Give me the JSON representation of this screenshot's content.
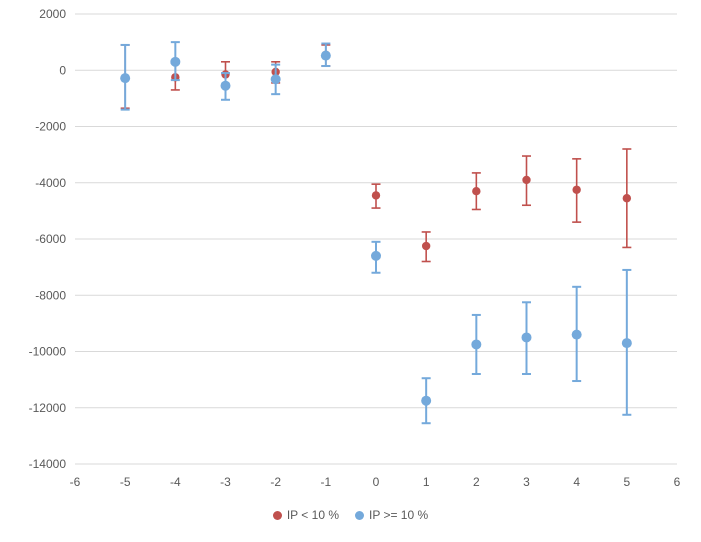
{
  "chart_data": {
    "type": "scatter",
    "title": "",
    "xlabel": "",
    "ylabel": "",
    "xlim": [
      -6,
      6
    ],
    "ylim": [
      -14000,
      2000
    ],
    "x_ticks": [
      -6,
      -5,
      -4,
      -3,
      -2,
      -1,
      0,
      1,
      2,
      3,
      4,
      5,
      6
    ],
    "y_ticks": [
      2000,
      0,
      -2000,
      -4000,
      -6000,
      -8000,
      -10000,
      -12000,
      -14000
    ],
    "grid": "horizontal",
    "grid_color": "#d9d9d9",
    "axis_text_color": "#595959",
    "legend_position": "bottom",
    "series": [
      {
        "name": "IP < 10 %",
        "color": "#c0504d",
        "marker_r": 4.2,
        "line_width": 1.6,
        "points": [
          {
            "x": -5,
            "y": -280,
            "lo": -1350,
            "hi": 900
          },
          {
            "x": -4,
            "y": -250,
            "lo": -700,
            "hi": 250
          },
          {
            "x": -3,
            "y": -150,
            "lo": -600,
            "hi": 300
          },
          {
            "x": -2,
            "y": -60,
            "lo": -450,
            "hi": 300
          },
          {
            "x": -1,
            "y": 550,
            "lo": 150,
            "hi": 900
          },
          {
            "x": 0,
            "y": -4450,
            "lo": -4900,
            "hi": -4050
          },
          {
            "x": 1,
            "y": -6250,
            "lo": -6800,
            "hi": -5750
          },
          {
            "x": 2,
            "y": -4300,
            "lo": -4950,
            "hi": -3650
          },
          {
            "x": 3,
            "y": -3900,
            "lo": -4800,
            "hi": -3050
          },
          {
            "x": 4,
            "y": -4250,
            "lo": -5400,
            "hi": -3150
          },
          {
            "x": 5,
            "y": -4550,
            "lo": -6300,
            "hi": -2800
          }
        ]
      },
      {
        "name": "IP >= 10 %",
        "color": "#74a9db",
        "marker_r": 5,
        "line_width": 2,
        "points": [
          {
            "x": -5,
            "y": -280,
            "lo": -1400,
            "hi": 900
          },
          {
            "x": -4,
            "y": 300,
            "lo": -350,
            "hi": 1000
          },
          {
            "x": -3,
            "y": -550,
            "lo": -1050,
            "hi": -100
          },
          {
            "x": -2,
            "y": -320,
            "lo": -850,
            "hi": 200
          },
          {
            "x": -1,
            "y": 520,
            "lo": 150,
            "hi": 950
          },
          {
            "x": 0,
            "y": -6600,
            "lo": -7200,
            "hi": -6100
          },
          {
            "x": 1,
            "y": -11750,
            "lo": -12550,
            "hi": -10950
          },
          {
            "x": 2,
            "y": -9750,
            "lo": -10800,
            "hi": -8700
          },
          {
            "x": 3,
            "y": -9500,
            "lo": -10800,
            "hi": -8250
          },
          {
            "x": 4,
            "y": -9400,
            "lo": -11050,
            "hi": -7700
          },
          {
            "x": 5,
            "y": -9700,
            "lo": -12250,
            "hi": -7100
          }
        ]
      }
    ]
  }
}
